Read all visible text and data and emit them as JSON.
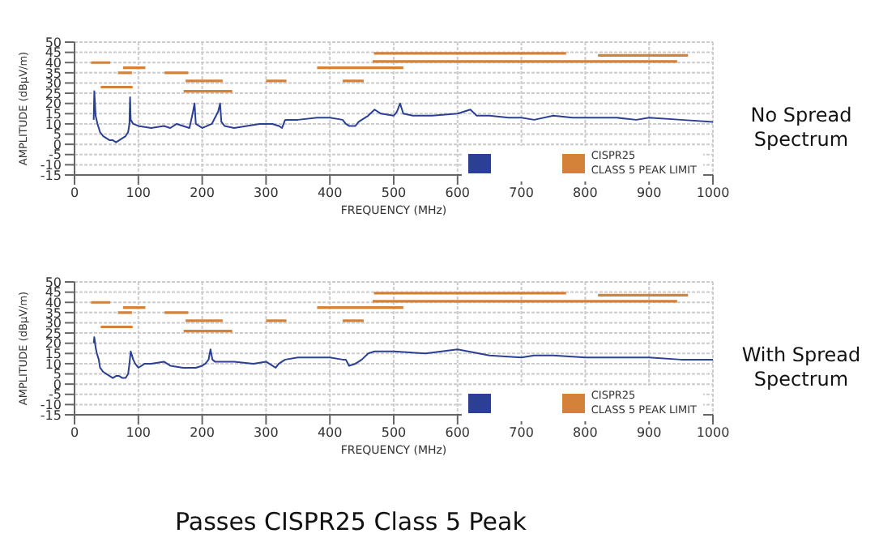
{
  "chart_data": [
    {
      "type": "line",
      "annotations": [
        "No Spread Spectrum"
      ],
      "xlabel": "FREQUENCY (MHz)",
      "ylabel": "AMPLITUDE (dBµV/m)",
      "xlim": [
        0,
        1000
      ],
      "xticks": [
        0,
        100,
        200,
        300,
        400,
        500,
        600,
        700,
        800,
        900,
        1000
      ],
      "ylim": [
        -15,
        50
      ],
      "yticks": [
        -15,
        -10,
        -5,
        0,
        5,
        10,
        15,
        20,
        25,
        30,
        35,
        40,
        45,
        50
      ],
      "grid": true,
      "legend": "bottom right",
      "series": [
        {
          "color": "#2b3f94",
          "x": [
            30,
            31,
            33,
            36,
            40,
            45,
            50,
            55,
            60,
            65,
            70,
            75,
            80,
            84,
            86,
            87,
            88,
            92,
            100,
            120,
            140,
            150,
            160,
            170,
            180,
            185,
            188,
            190,
            195,
            200,
            215,
            225,
            228,
            230,
            235,
            250,
            270,
            290,
            300,
            310,
            320,
            325,
            330,
            350,
            380,
            400,
            420,
            425,
            430,
            440,
            445,
            450,
            460,
            470,
            480,
            500,
            505,
            510,
            515,
            530,
            560,
            600,
            620,
            630,
            650,
            680,
            700,
            720,
            750,
            780,
            800,
            850,
            880,
            900,
            950,
            1000
          ],
          "values": [
            12,
            26,
            14,
            10,
            6,
            4,
            3,
            2,
            2,
            1,
            2,
            3,
            4,
            6,
            10,
            23,
            12,
            10,
            9,
            8,
            9,
            8,
            10,
            9,
            8,
            15,
            20,
            10,
            9,
            8,
            10,
            16,
            20,
            11,
            9,
            8,
            9,
            10,
            10,
            10,
            9,
            8,
            12,
            12,
            13,
            13,
            12,
            10,
            9,
            9,
            11,
            12,
            14,
            17,
            15,
            14,
            16,
            20,
            15,
            14,
            14,
            15,
            17,
            14,
            14,
            13,
            13,
            12,
            14,
            13,
            13,
            13,
            12,
            13,
            12,
            11
          ]
        },
        {
          "name": "CISPR25\nCLASS 5 PEAK LIMIT",
          "color": "#d4813a",
          "x": [
            26,
            56,
            null,
            41,
            91,
            null,
            68,
            90,
            null,
            76,
            111,
            null,
            141,
            178,
            null,
            174,
            232,
            null,
            171,
            247,
            null,
            300,
            332,
            null,
            420,
            453,
            null,
            380,
            515,
            null,
            469,
            770,
            null,
            467,
            944,
            null,
            820,
            961
          ],
          "values": [
            40,
            40,
            null,
            28,
            28,
            null,
            35,
            35,
            null,
            37.5,
            37.5,
            null,
            35,
            35,
            null,
            31,
            31,
            null,
            26,
            26,
            null,
            31,
            31,
            null,
            31,
            31,
            null,
            37.5,
            37.5,
            null,
            44.5,
            44.5,
            null,
            40.5,
            40.5,
            null,
            43.5,
            43.5
          ]
        }
      ]
    },
    {
      "type": "line",
      "xlabel": "FREQUENCY (MHz)",
      "ylabel": "AMPLITUDE (dBµV/m)",
      "xlim": [
        0,
        1000
      ],
      "xticks": [
        0,
        100,
        200,
        300,
        400,
        500,
        600,
        700,
        800,
        900,
        1000
      ],
      "ylim": [
        -15,
        50
      ],
      "yticks": [
        -15,
        -10,
        -5,
        0,
        5,
        10,
        15,
        20,
        25,
        30,
        35,
        40,
        45,
        50
      ],
      "grid": true,
      "legend": "bottom right",
      "annotations": [
        "With Spread Spectrum",
        "Passes CISPR25 Class 5 Peak"
      ],
      "series": [
        {
          "color": "#2b3f94",
          "x": [
            30,
            31,
            33,
            35,
            38,
            40,
            45,
            50,
            55,
            60,
            65,
            70,
            75,
            80,
            84,
            86,
            88,
            92,
            95,
            100,
            110,
            120,
            140,
            150,
            170,
            190,
            200,
            205,
            210,
            213,
            216,
            220,
            250,
            280,
            300,
            310,
            315,
            320,
            330,
            350,
            380,
            400,
            420,
            425,
            430,
            440,
            445,
            450,
            460,
            470,
            500,
            550,
            600,
            650,
            700,
            720,
            750,
            800,
            850,
            900,
            950,
            1000
          ],
          "values": [
            20,
            23,
            18,
            15,
            12,
            8,
            6,
            5,
            4,
            3,
            4,
            4,
            3,
            3,
            5,
            10,
            16,
            12,
            10,
            8,
            10,
            10,
            11,
            9,
            8,
            8,
            9,
            10,
            12,
            17,
            12,
            11,
            11,
            10,
            11,
            9,
            8,
            10,
            12,
            13,
            13,
            13,
            12,
            12,
            9,
            10,
            11,
            12,
            15,
            16,
            16,
            15,
            17,
            14,
            13,
            14,
            14,
            13,
            13,
            13,
            12,
            12
          ]
        },
        {
          "name": "CISPR25\nCLASS 5 PEAK LIMIT",
          "color": "#d4813a",
          "x": [
            26,
            56,
            null,
            41,
            91,
            null,
            68,
            90,
            null,
            76,
            111,
            null,
            141,
            178,
            null,
            174,
            232,
            null,
            171,
            247,
            null,
            300,
            332,
            null,
            420,
            453,
            null,
            380,
            515,
            null,
            469,
            770,
            null,
            467,
            944,
            null,
            820,
            961
          ],
          "values": [
            40,
            40,
            null,
            28,
            28,
            null,
            35,
            35,
            null,
            37.5,
            37.5,
            null,
            35,
            35,
            null,
            31,
            31,
            null,
            26,
            26,
            null,
            31,
            31,
            null,
            31,
            31,
            null,
            37.5,
            37.5,
            null,
            44.5,
            44.5,
            null,
            40.5,
            40.5,
            null,
            43.5,
            43.5
          ]
        }
      ]
    }
  ]
}
